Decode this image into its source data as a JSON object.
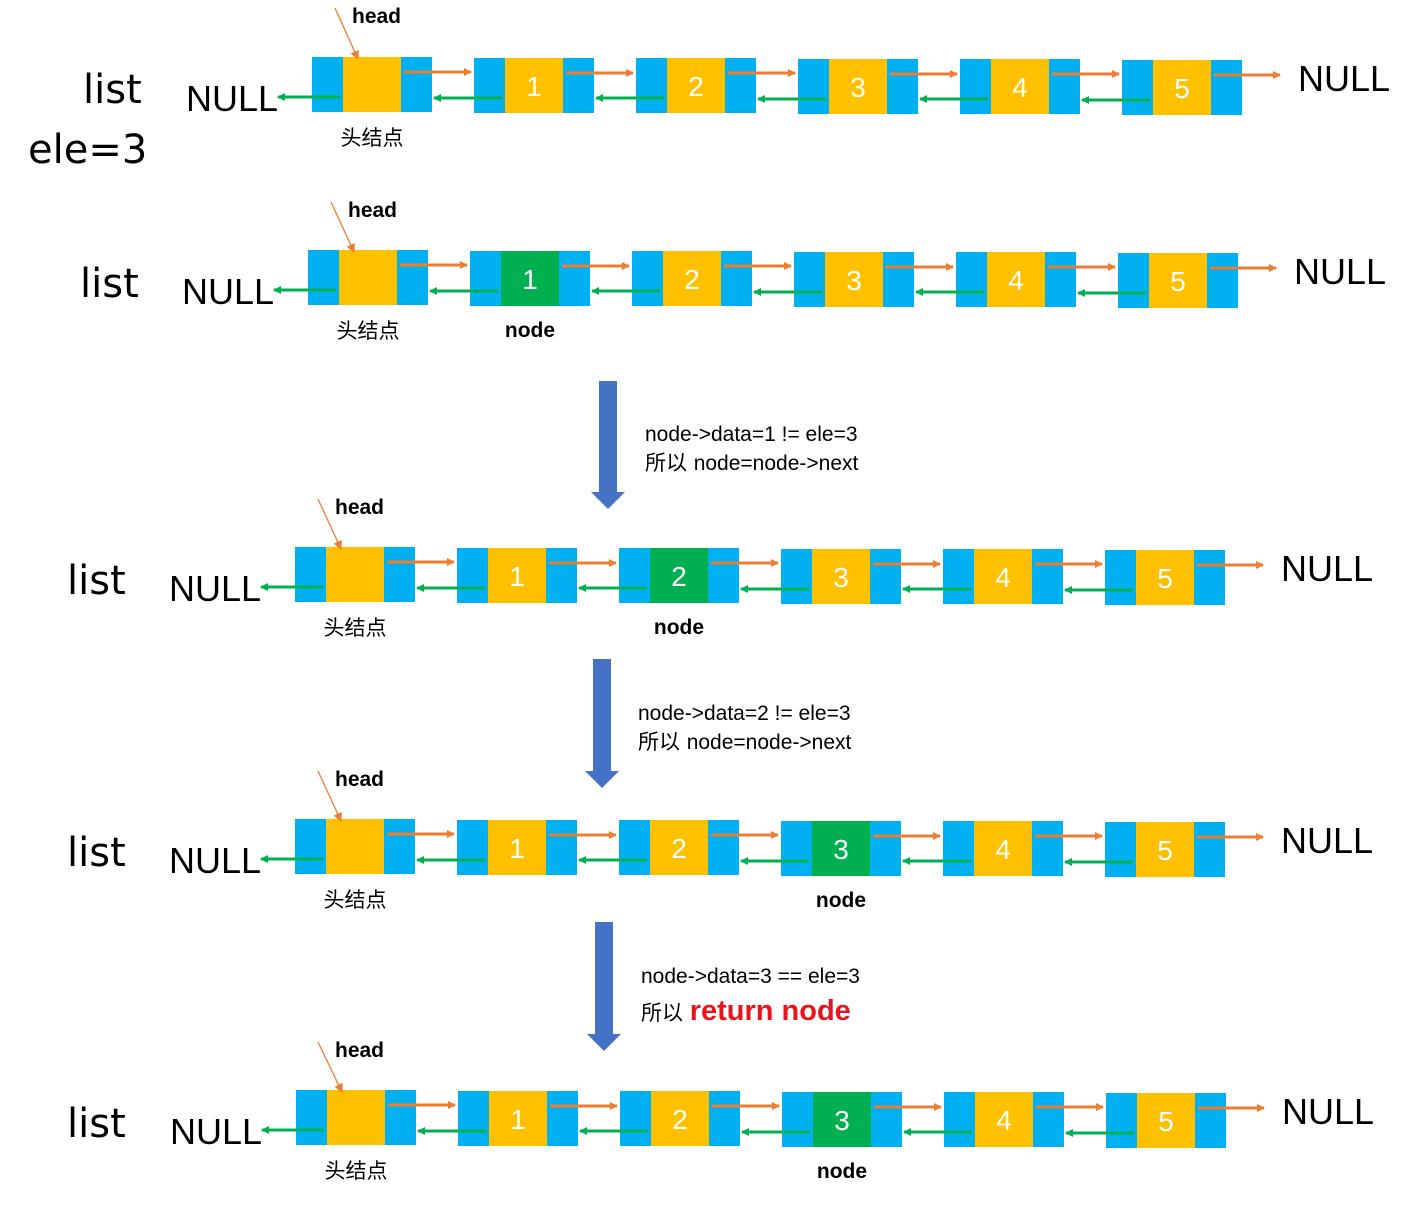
{
  "colors": {
    "pointer_cell": "#00b0f0",
    "data_cell": "#ffc000",
    "current_node": "#00b050",
    "next_arrow": "#ed7d31",
    "prev_arrow": "#00b050",
    "step_arrow": "#4472c4",
    "head_pointer": "#ed7d31",
    "return_text": "#e8141b"
  },
  "labels": {
    "list": "list",
    "ele": "ele=3",
    "null": "NULL",
    "head": "head",
    "head_node": "头结点",
    "node": "node"
  },
  "rows": [
    {
      "values": [
        "1",
        "2",
        "3",
        "4",
        "5"
      ],
      "current_index": null,
      "show_ele": true
    },
    {
      "values": [
        "1",
        "2",
        "3",
        "4",
        "5"
      ],
      "current_index": 0,
      "show_ele": false
    },
    {
      "values": [
        "1",
        "2",
        "3",
        "4",
        "5"
      ],
      "current_index": 1,
      "show_ele": false
    },
    {
      "values": [
        "1",
        "2",
        "3",
        "4",
        "5"
      ],
      "current_index": 2,
      "show_ele": false
    },
    {
      "values": [
        "1",
        "2",
        "3",
        "4",
        "5"
      ],
      "current_index": 2,
      "show_ele": false
    }
  ],
  "steps": [
    {
      "line1": "node->data=1 != ele=3",
      "line2_prefix": "所以",
      "line2_rest": "node=node->next",
      "is_return": false
    },
    {
      "line1": "node->data=2 != ele=3",
      "line2_prefix": "所以",
      "line2_rest": "node=node->next",
      "is_return": false
    },
    {
      "line1": "node->data=3 == ele=3",
      "line2_prefix": "所以",
      "line2_rest": "return node",
      "is_return": true
    }
  ]
}
